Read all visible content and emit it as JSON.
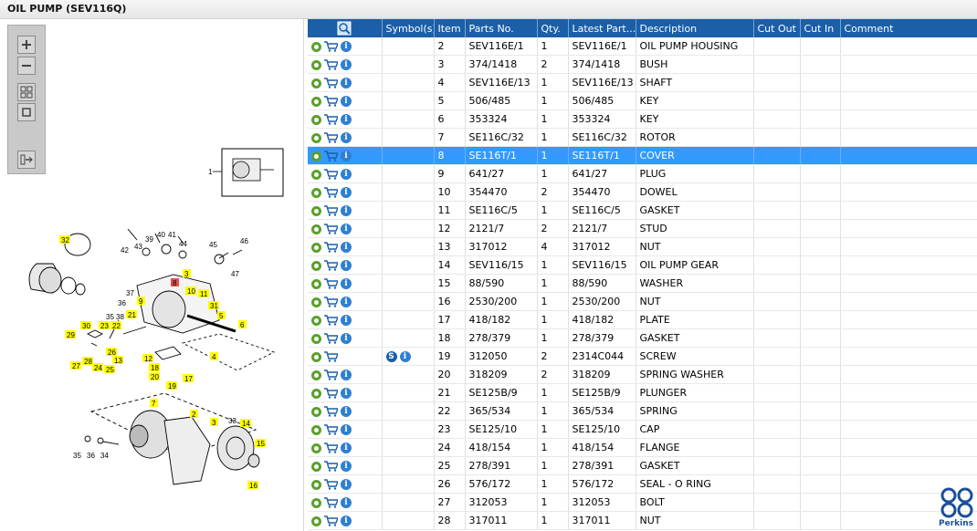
{
  "title": "OIL PUMP (SEV116Q)",
  "toolbar": {
    "icons": [
      "zoom-in-icon",
      "zoom-out-icon",
      "fit-page-icon",
      "actual-size-icon",
      "export-icon"
    ]
  },
  "diagram": {
    "callouts": [
      "1",
      "2",
      "3",
      "3",
      "4",
      "5",
      "6",
      "7",
      "8",
      "9",
      "10",
      "11",
      "12",
      "13",
      "14",
      "15",
      "16",
      "17",
      "18",
      "19",
      "20",
      "21",
      "22",
      "23",
      "24",
      "25",
      "26",
      "27",
      "28",
      "29",
      "30",
      "31",
      "32",
      "33",
      "34",
      "35",
      "35",
      "36",
      "36",
      "37",
      "38",
      "39",
      "40",
      "41",
      "42",
      "43",
      "44",
      "45",
      "46",
      "47"
    ]
  },
  "grid": {
    "columns": [
      "",
      "Symbol(s)",
      "Item",
      "Parts No.",
      "Qty.",
      "Latest Part...",
      "Description",
      "Cut Out",
      "Cut In",
      "Comment"
    ],
    "selected_index": 6,
    "rows": [
      {
        "item": "2",
        "part_no": "SEV116E/1",
        "qty": "1",
        "latest": "SEV116E/1",
        "desc": "OIL PUMP HOUSING",
        "cut_out": "",
        "cut_in": "",
        "comment": ""
      },
      {
        "item": "3",
        "part_no": "374/1418",
        "qty": "2",
        "latest": "374/1418",
        "desc": "BUSH",
        "cut_out": "",
        "cut_in": "",
        "comment": ""
      },
      {
        "item": "4",
        "part_no": "SEV116E/13",
        "qty": "1",
        "latest": "SEV116E/13",
        "desc": "SHAFT",
        "cut_out": "",
        "cut_in": "",
        "comment": ""
      },
      {
        "item": "5",
        "part_no": "506/485",
        "qty": "1",
        "latest": "506/485",
        "desc": "KEY",
        "cut_out": "",
        "cut_in": "",
        "comment": ""
      },
      {
        "item": "6",
        "part_no": "353324",
        "qty": "1",
        "latest": "353324",
        "desc": "KEY",
        "cut_out": "",
        "cut_in": "",
        "comment": ""
      },
      {
        "item": "7",
        "part_no": "SE116C/32",
        "qty": "1",
        "latest": "SE116C/32",
        "desc": "ROTOR",
        "cut_out": "",
        "cut_in": "",
        "comment": ""
      },
      {
        "item": "8",
        "part_no": "SE116T/1",
        "qty": "1",
        "latest": "SE116T/1",
        "desc": "COVER",
        "cut_out": "",
        "cut_in": "",
        "comment": ""
      },
      {
        "item": "9",
        "part_no": "641/27",
        "qty": "1",
        "latest": "641/27",
        "desc": "PLUG",
        "cut_out": "",
        "cut_in": "",
        "comment": ""
      },
      {
        "item": "10",
        "part_no": "354470",
        "qty": "2",
        "latest": "354470",
        "desc": "DOWEL",
        "cut_out": "",
        "cut_in": "",
        "comment": ""
      },
      {
        "item": "11",
        "part_no": "SE116C/5",
        "qty": "1",
        "latest": "SE116C/5",
        "desc": "GASKET",
        "cut_out": "",
        "cut_in": "",
        "comment": ""
      },
      {
        "item": "12",
        "part_no": "2121/7",
        "qty": "2",
        "latest": "2121/7",
        "desc": "STUD",
        "cut_out": "",
        "cut_in": "",
        "comment": ""
      },
      {
        "item": "13",
        "part_no": "317012",
        "qty": "4",
        "latest": "317012",
        "desc": "NUT",
        "cut_out": "",
        "cut_in": "",
        "comment": ""
      },
      {
        "item": "14",
        "part_no": "SEV116/15",
        "qty": "1",
        "latest": "SEV116/15",
        "desc": "OIL PUMP GEAR",
        "cut_out": "",
        "cut_in": "",
        "comment": ""
      },
      {
        "item": "15",
        "part_no": "88/590",
        "qty": "1",
        "latest": "88/590",
        "desc": "WASHER",
        "cut_out": "",
        "cut_in": "",
        "comment": ""
      },
      {
        "item": "16",
        "part_no": "2530/200",
        "qty": "1",
        "latest": "2530/200",
        "desc": "NUT",
        "cut_out": "",
        "cut_in": "",
        "comment": ""
      },
      {
        "item": "17",
        "part_no": "418/182",
        "qty": "1",
        "latest": "418/182",
        "desc": "PLATE",
        "cut_out": "",
        "cut_in": "",
        "comment": ""
      },
      {
        "item": "18",
        "part_no": "278/379",
        "qty": "1",
        "latest": "278/379",
        "desc": "GASKET",
        "cut_out": "",
        "cut_in": "",
        "comment": ""
      },
      {
        "item": "19",
        "part_no": "312050",
        "qty": "2",
        "latest": "2314C044",
        "desc": "SCREW",
        "cut_out": "",
        "cut_in": "",
        "comment": "",
        "symbol": "S"
      },
      {
        "item": "20",
        "part_no": "318209",
        "qty": "2",
        "latest": "318209",
        "desc": "SPRING WASHER",
        "cut_out": "",
        "cut_in": "",
        "comment": ""
      },
      {
        "item": "21",
        "part_no": "SE125B/9",
        "qty": "1",
        "latest": "SE125B/9",
        "desc": "PLUNGER",
        "cut_out": "",
        "cut_in": "",
        "comment": ""
      },
      {
        "item": "22",
        "part_no": "365/534",
        "qty": "1",
        "latest": "365/534",
        "desc": "SPRING",
        "cut_out": "",
        "cut_in": "",
        "comment": ""
      },
      {
        "item": "23",
        "part_no": "SE125/10",
        "qty": "1",
        "latest": "SE125/10",
        "desc": "CAP",
        "cut_out": "",
        "cut_in": "",
        "comment": ""
      },
      {
        "item": "24",
        "part_no": "418/154",
        "qty": "1",
        "latest": "418/154",
        "desc": "FLANGE",
        "cut_out": "",
        "cut_in": "",
        "comment": ""
      },
      {
        "item": "25",
        "part_no": "278/391",
        "qty": "1",
        "latest": "278/391",
        "desc": "GASKET",
        "cut_out": "",
        "cut_in": "",
        "comment": ""
      },
      {
        "item": "26",
        "part_no": "576/172",
        "qty": "1",
        "latest": "576/172",
        "desc": "SEAL - O RING",
        "cut_out": "",
        "cut_in": "",
        "comment": ""
      },
      {
        "item": "27",
        "part_no": "312053",
        "qty": "1",
        "latest": "312053",
        "desc": "BOLT",
        "cut_out": "",
        "cut_in": "",
        "comment": ""
      },
      {
        "item": "28",
        "part_no": "317011",
        "qty": "1",
        "latest": "317011",
        "desc": "NUT",
        "cut_out": "",
        "cut_in": "",
        "comment": ""
      }
    ]
  },
  "brand": {
    "name": "Perkins",
    "color": "#1a4f9a"
  },
  "colors": {
    "header_bg": "#1a5fa8",
    "selected_row": "#3399ff",
    "callout_bg": "#ffff00",
    "callout_highlight": "#e05050"
  }
}
